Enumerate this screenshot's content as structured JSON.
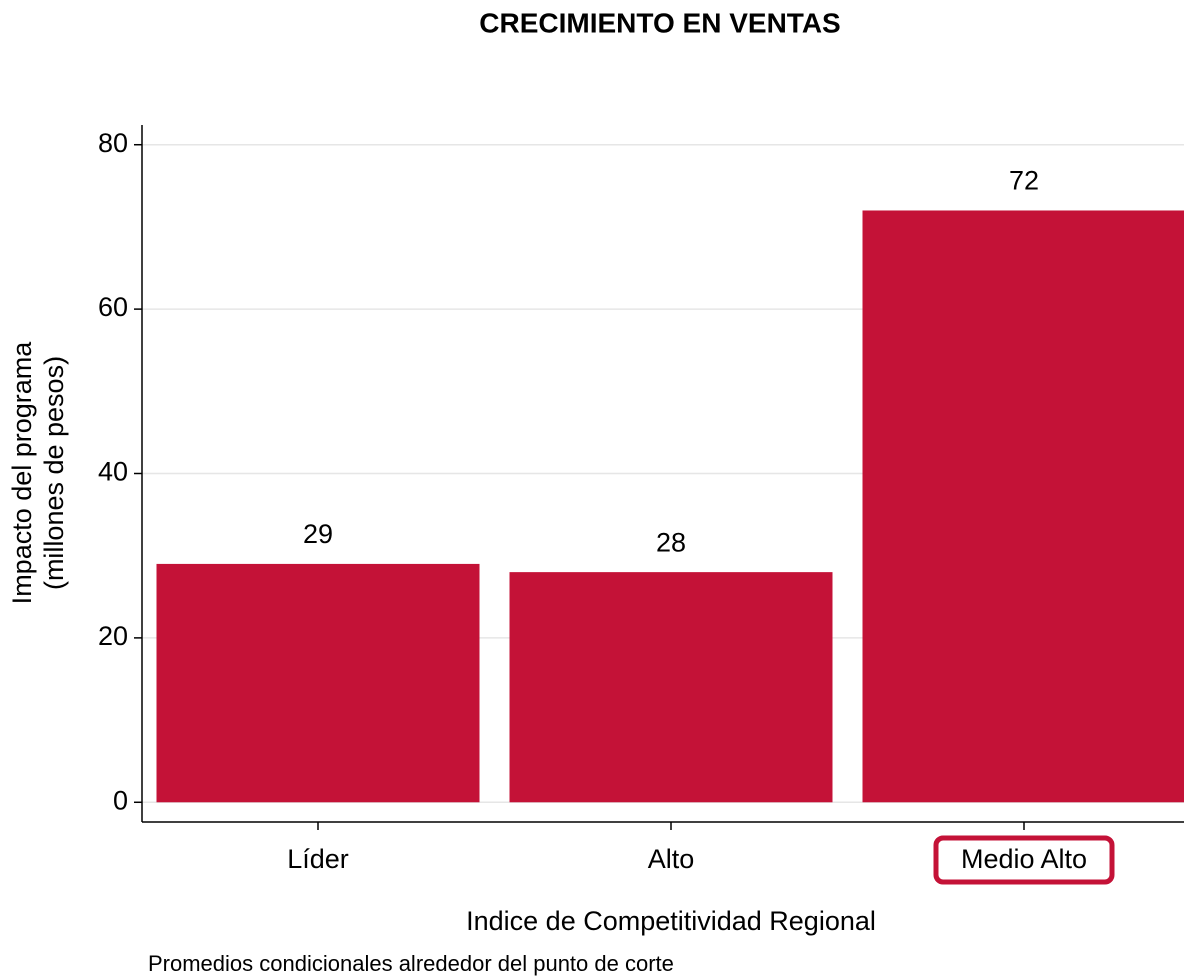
{
  "chart_data": {
    "type": "bar",
    "title": "CRECIMIENTO EN VENTAS",
    "y_label": [
      "Impacto del programa",
      "(millones de pesos)"
    ],
    "x_label": "Indice de Competitividad Regional",
    "note": "Promedios condicionales alrededor del punto de corte",
    "categories": [
      "Líder",
      "Alto",
      "Medio Alto"
    ],
    "values": [
      29,
      28,
      72
    ],
    "color": "#c41237",
    "highlight_index": 2,
    "ylim": [
      -2.4,
      82.4
    ],
    "yticks": [
      0,
      20,
      40,
      60,
      80
    ],
    "grid": true
  }
}
